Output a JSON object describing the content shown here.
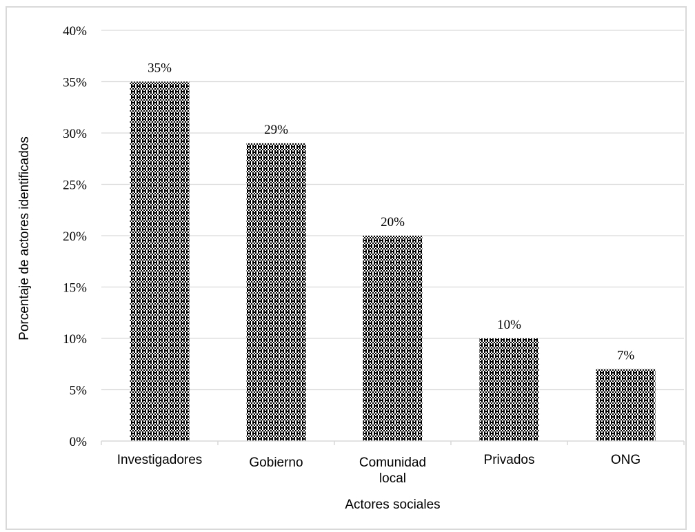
{
  "chart_data": {
    "type": "bar",
    "title": "",
    "xlabel": "Actores sociales",
    "ylabel": "Porcentaje de actores identificados",
    "categories": [
      [
        "Investigadores"
      ],
      [
        "Gobierno"
      ],
      [
        "Comunidad",
        "local"
      ],
      [
        "Privados"
      ],
      [
        "ONG"
      ]
    ],
    "values": [
      35,
      29,
      20,
      10,
      7
    ],
    "data_labels": [
      "35%",
      "29%",
      "20%",
      "10%",
      "7%"
    ],
    "ylim": [
      0,
      40
    ],
    "yticks": [
      0,
      5,
      10,
      15,
      20,
      25,
      30,
      35,
      40
    ],
    "ytick_labels": [
      "0%",
      "5%",
      "10%",
      "15%",
      "20%",
      "25%",
      "30%",
      "35%",
      "40%"
    ],
    "grid": true,
    "legend": "none",
    "colors": {
      "bar_fill_pattern": "black-and-white checkered pattern",
      "pattern_dark": "#000000",
      "pattern_light": "#ffffff",
      "gridline": "#d9d9d9",
      "axis_line": "#d9d9d9"
    }
  }
}
